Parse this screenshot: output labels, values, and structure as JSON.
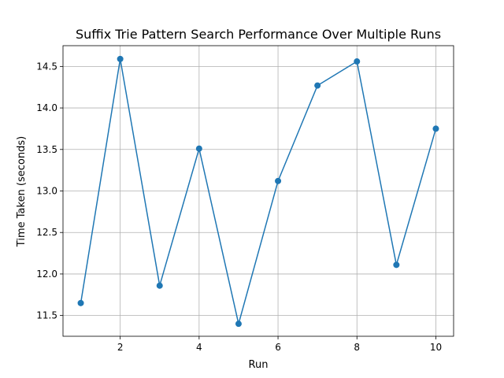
{
  "chart_data": {
    "type": "line",
    "title": "Suffix Trie Pattern Search Performance Over Multiple Runs",
    "xlabel": "Run",
    "ylabel": "Time Taken (seconds)",
    "xlim": [
      0.55,
      10.45
    ],
    "ylim": [
      11.25,
      14.75
    ],
    "xticks": [
      2,
      4,
      6,
      8,
      10
    ],
    "yticks": [
      11.5,
      12.0,
      12.5,
      13.0,
      13.5,
      14.0,
      14.5
    ],
    "ytick_labels": [
      "11.5",
      "12.0",
      "12.5",
      "13.0",
      "13.5",
      "14.0",
      "14.5"
    ],
    "grid": true,
    "series": [
      {
        "color": "#1f77b4",
        "marker": "circle",
        "x": [
          1,
          2,
          3,
          4,
          5,
          6,
          7,
          8,
          9,
          10
        ],
        "y": [
          11.65,
          14.59,
          11.86,
          13.51,
          11.4,
          13.12,
          14.27,
          14.56,
          12.11,
          13.75
        ]
      }
    ]
  }
}
